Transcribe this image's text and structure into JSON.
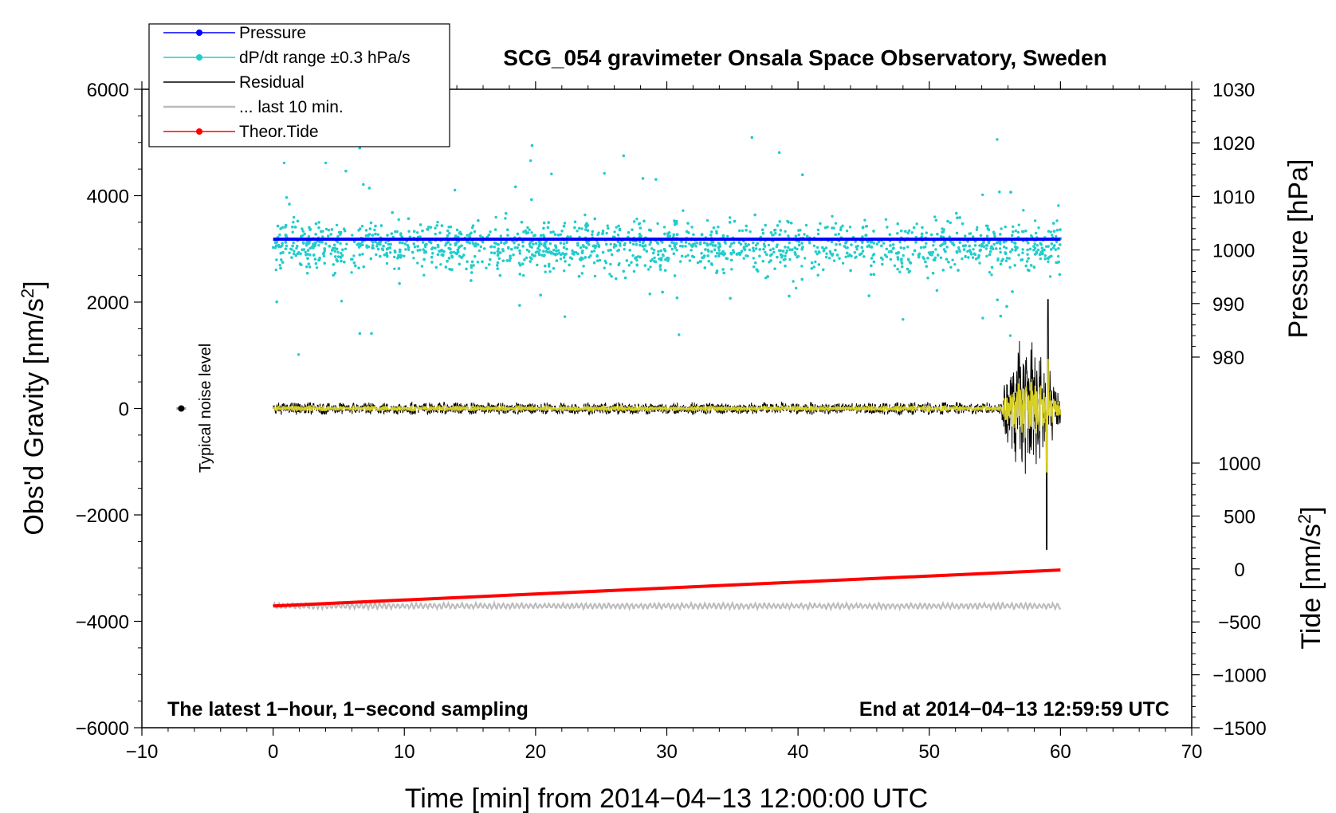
{
  "chart_data": {
    "type": "scatter",
    "title": "SCG_054 gravimeter Onsala Space Observatory, Sweden",
    "xlabel": "Time [min] from 2014−04−13 12:00:00 UTC",
    "ylabel_left": "Obs'd Gravity [nm/s²]",
    "ylabel_right_top": "Pressure [hPa]",
    "ylabel_right_bottom": "Tide [nm/s²]",
    "xlim": [
      -10,
      70
    ],
    "ylim_left": [
      -6000,
      6000
    ],
    "x_ticks": [
      "−10",
      "0",
      "10",
      "20",
      "30",
      "40",
      "50",
      "60",
      "70"
    ],
    "y_left_ticks": [
      "6000",
      "4000",
      "2000",
      "0",
      "−2000",
      "−4000",
      "−6000"
    ],
    "pressure_axis": {
      "ticks": [
        "1030",
        "1020",
        "1010",
        "1000",
        "990",
        "980"
      ],
      "range": [
        980,
        1030
      ]
    },
    "tide_axis": {
      "ticks": [
        "1000",
        "500",
        "0",
        "−500",
        "−1000",
        "−1500"
      ],
      "range": [
        -1500,
        1000
      ]
    },
    "legend": [
      {
        "label": "Pressure",
        "color": "#0000ff",
        "marker": true
      },
      {
        "label": "dP/dt range ±0.3 hPa/s",
        "color": "#22cccc",
        "marker": true
      },
      {
        "label": "Residual",
        "color": "#000000",
        "marker": false
      },
      {
        "label": "... last 10 min.",
        "color": "#bbbbbb",
        "marker": false
      },
      {
        "label": "Theor.Tide",
        "color": "#ff0000",
        "marker": true
      }
    ],
    "legend_position": "top-left",
    "annotations": {
      "noise": "Typical noise level",
      "left_note": "The latest 1−hour, 1−second sampling",
      "right_note": "End at 2014−04−13 12:59:59 UTC"
    },
    "series": [
      {
        "name": "Pressure",
        "color": "#0000ff",
        "x": [
          0,
          60
        ],
        "pressure_hPa": [
          1002,
          1002
        ]
      },
      {
        "name": "dP/dt range ±0.3 hPa/s",
        "color": "#22cccc",
        "x_range": [
          0,
          60
        ],
        "typical_gravity_range": [
          2200,
          4000
        ]
      },
      {
        "name": "Residual",
        "color": "#000000",
        "x_range": [
          0,
          60
        ],
        "typical_amplitude": 100,
        "event": {
          "x_range": [
            55.5,
            60
          ],
          "max": 2050,
          "min": -2650
        }
      },
      {
        "name": "... last 10 min.",
        "color": "#bbbbbb",
        "x_range": [
          0,
          60
        ],
        "tide_level": -350
      },
      {
        "name": "Theor.Tide",
        "color": "#ff0000",
        "x": [
          0,
          60
        ],
        "tide": [
          -350,
          -10
        ]
      }
    ],
    "noise_level_marker": {
      "x": -7,
      "y": 0
    }
  }
}
